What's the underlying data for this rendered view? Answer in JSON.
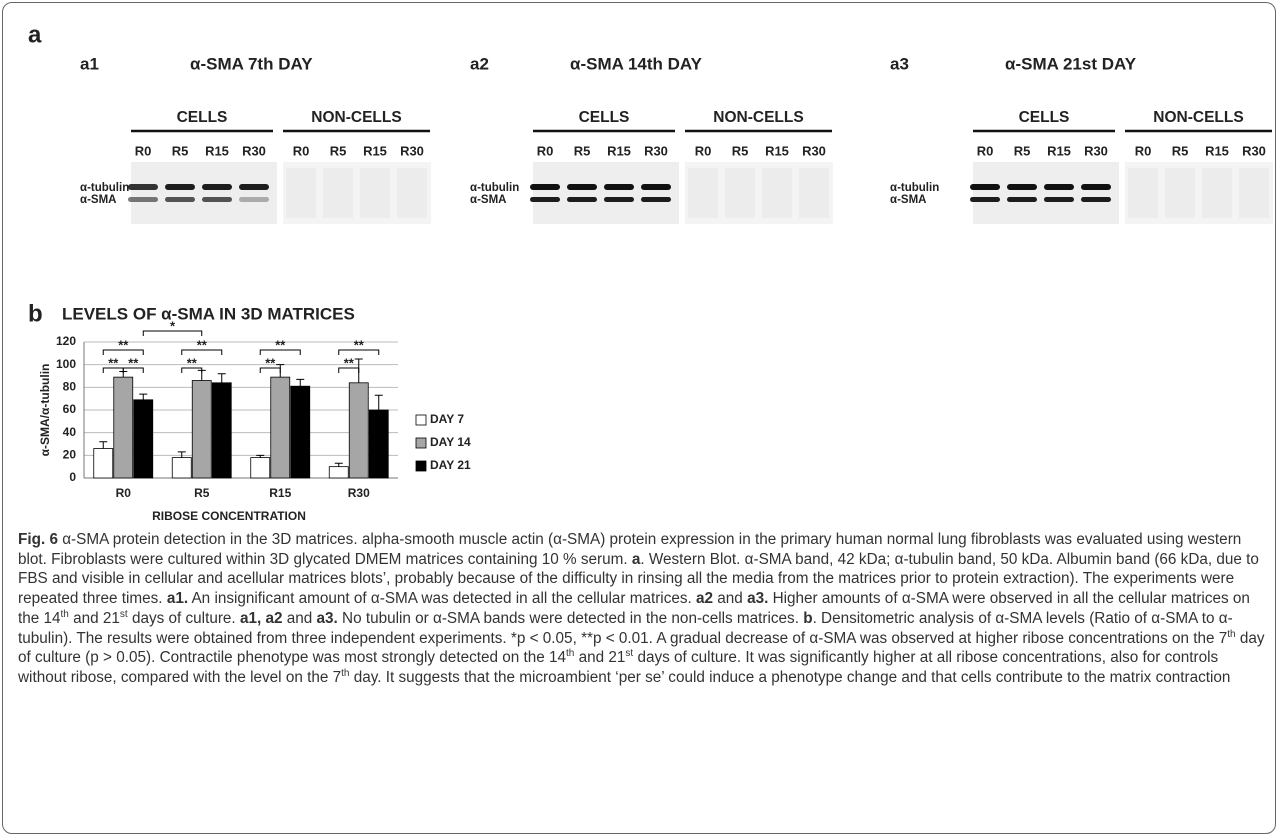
{
  "panel_a": {
    "label": "a",
    "blots": [
      {
        "label": "a1",
        "title": "α-SMA 7th DAY",
        "groups": [
          "CELLS",
          "NON-CELLS"
        ],
        "lanes": [
          "R0",
          "R5",
          "R15",
          "R30",
          "R0",
          "R5",
          "R15",
          "R30"
        ],
        "bands": [
          "α-tubulin",
          "α-SMA"
        ]
      },
      {
        "label": "a2",
        "title": "α-SMA 14th DAY",
        "groups": [
          "CELLS",
          "NON-CELLS"
        ],
        "lanes": [
          "R0",
          "R5",
          "R15",
          "R30",
          "R0",
          "R5",
          "R15",
          "R30"
        ],
        "bands": [
          "α-tubulin",
          "α-SMA"
        ]
      },
      {
        "label": "a3",
        "title": "α-SMA 21st DAY",
        "groups": [
          "CELLS",
          "NON-CELLS"
        ],
        "lanes": [
          "R0",
          "R5",
          "R15",
          "R30",
          "R0",
          "R5",
          "R15",
          "R30"
        ],
        "bands": [
          "α-tubulin",
          "α-SMA"
        ]
      }
    ]
  },
  "chart_data": {
    "type": "bar",
    "label": "b",
    "title": "LEVELS OF α-SMA IN 3D MATRICES",
    "y_label": "α-SMA/α-tubulin",
    "x_label": "RIBOSE CONCENTRATION",
    "categories": [
      "R0",
      "R5",
      "R15",
      "R30"
    ],
    "series": [
      {
        "name": "DAY 7",
        "color": "#ffffff",
        "values": [
          26,
          18,
          18,
          10
        ],
        "errors": [
          6,
          5,
          2,
          3
        ]
      },
      {
        "name": "DAY 14",
        "color": "#a6a6a6",
        "values": [
          89,
          86,
          89,
          84
        ],
        "errors": [
          5,
          9,
          11,
          21
        ]
      },
      {
        "name": "DAY 21",
        "color": "#000000",
        "values": [
          69,
          84,
          81,
          60
        ],
        "errors": [
          5,
          8,
          6,
          13
        ]
      }
    ],
    "ylim": [
      0,
      120
    ],
    "yticks": [
      0,
      20,
      40,
      60,
      80,
      100,
      120
    ],
    "grid": true,
    "legend": "right",
    "annotations": [
      "**",
      "**",
      "**",
      "*",
      "**",
      "**",
      "**",
      "**",
      "**",
      "**"
    ]
  },
  "caption": {
    "segments": [
      "Fig. 6",
      " α-SMA protein detection in the 3D matrices. alpha-smooth muscle actin (α-SMA) protein expression in the primary human normal lung fibroblasts was evaluated using western blot. Fibroblasts were cultured within 3D glycated DMEM matrices containing 10 % serum. ",
      "a",
      ". Western Blot. α-SMA band, 42 kDa; α-tubulin band, 50 kDa. Albumin band (66 kDa, due to FBS and visible in cellular and acellular matrices blots’, probably because of the difficulty in rinsing all the media from the matrices prior to protein extraction). The experiments were repeated three times. ",
      "a1.",
      " An insignificant amount of α-SMA was detected in all the cellular matrices. ",
      "a2",
      " and ",
      "a3.",
      " Higher amounts of α-SMA were observed in all the cellular matrices on the 14",
      "th",
      " and 21",
      "st",
      " days of culture. ",
      "a1, a2",
      " and ",
      "a3.",
      " No tubulin or α-SMA bands were detected in the non-cells matrices. ",
      "b",
      ". Densitometric analysis of α-SMA levels (Ratio of α-SMA to α-tubulin). The results were obtained from three independent experiments. *p < 0.05, **p < 0.01. A gradual decrease of α-SMA was observed at higher ribose concentrations on the 7",
      "th",
      " day of culture (p > 0.05). Contractile phenotype was most strongly detected on the 14",
      "th",
      " and 21",
      "st",
      " days of culture. It was significantly higher at all ribose concentrations, also for controls without ribose, compared with the level on the 7",
      "th",
      " day. It suggests that the microambient ‘per se’ could induce a phenotype change and that cells contribute to the matrix contraction"
    ]
  }
}
